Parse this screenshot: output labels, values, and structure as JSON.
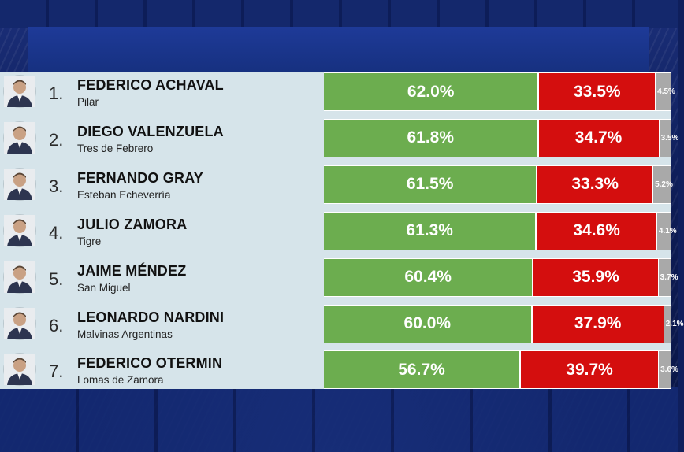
{
  "colors": {
    "first": "#6cad4f",
    "second": "#d40e0e",
    "other": "#a9a9a9"
  },
  "chart_data": {
    "type": "bar",
    "stacked": true,
    "orientation": "horizontal",
    "categories": [
      "FEDERICO ACHAVAL",
      "DIEGO VALENZUELA",
      "FERNANDO GRAY",
      "JULIO ZAMORA",
      "JAIME MÉNDEZ",
      "LEONARDO NARDINI",
      "FEDERICO OTERMIN"
    ],
    "series": [
      {
        "values": [
          62.0,
          61.8,
          61.5,
          61.3,
          60.4,
          60.0,
          56.7
        ]
      },
      {
        "values": [
          33.5,
          34.7,
          33.3,
          34.6,
          35.9,
          37.9,
          39.7
        ]
      },
      {
        "values": [
          4.5,
          3.5,
          5.2,
          4.1,
          3.7,
          2.1,
          3.6
        ]
      }
    ]
  },
  "rows": [
    {
      "rank": "1.",
      "name": "FEDERICO ACHAVAL",
      "place": "Pilar",
      "v1": "62.0%",
      "v2": "33.5%",
      "v3": "4.5%",
      "avatar": "person-icon"
    },
    {
      "rank": "2.",
      "name": "DIEGO VALENZUELA",
      "place": "Tres de Febrero",
      "v1": "61.8%",
      "v2": "34.7%",
      "v3": "3.5%",
      "avatar": "person-icon"
    },
    {
      "rank": "3.",
      "name": "FERNANDO GRAY",
      "place": "Esteban Echeverría",
      "v1": "61.5%",
      "v2": "33.3%",
      "v3": "5.2%",
      "avatar": "person-icon"
    },
    {
      "rank": "4.",
      "name": "JULIO ZAMORA",
      "place": "Tigre",
      "v1": "61.3%",
      "v2": "34.6%",
      "v3": "4.1%",
      "avatar": "person-icon"
    },
    {
      "rank": "5.",
      "name": "JAIME MÉNDEZ",
      "place": "San Miguel",
      "v1": "60.4%",
      "v2": "35.9%",
      "v3": "3.7%",
      "avatar": "person-icon"
    },
    {
      "rank": "6.",
      "name": "LEONARDO NARDINI",
      "place": "Malvinas Argentinas",
      "v1": "60.0%",
      "v2": "37.9%",
      "v3": "2.1%",
      "avatar": "person-icon"
    },
    {
      "rank": "7.",
      "name": "FEDERICO OTERMIN",
      "place": "Lomas de Zamora",
      "v1": "56.7%",
      "v2": "39.7%",
      "v3": "3.6%",
      "avatar": "person-icon"
    }
  ]
}
